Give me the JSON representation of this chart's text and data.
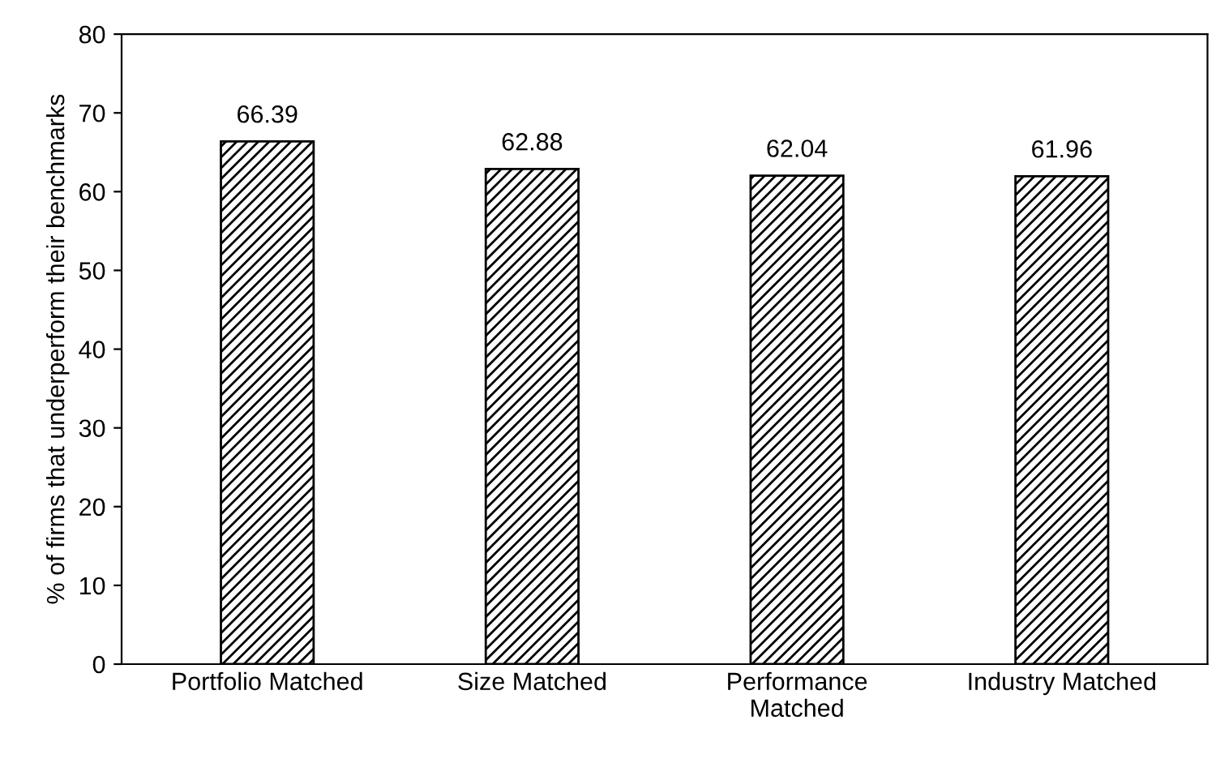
{
  "chart_data": {
    "type": "bar",
    "ylabel": "% of firms that underperform their benchmarks",
    "categories": [
      "Portfolio Matched",
      "Size Matched",
      "Performance\nMatched",
      "Industry Matched"
    ],
    "values": [
      66.39,
      62.88,
      62.04,
      61.96
    ],
    "color": "#000000",
    "data_labels": true,
    "ylim": [
      0,
      80
    ],
    "yticks": [
      0,
      10,
      20,
      30,
      40,
      50,
      60,
      70,
      80
    ],
    "grid": false,
    "legend": false
  }
}
